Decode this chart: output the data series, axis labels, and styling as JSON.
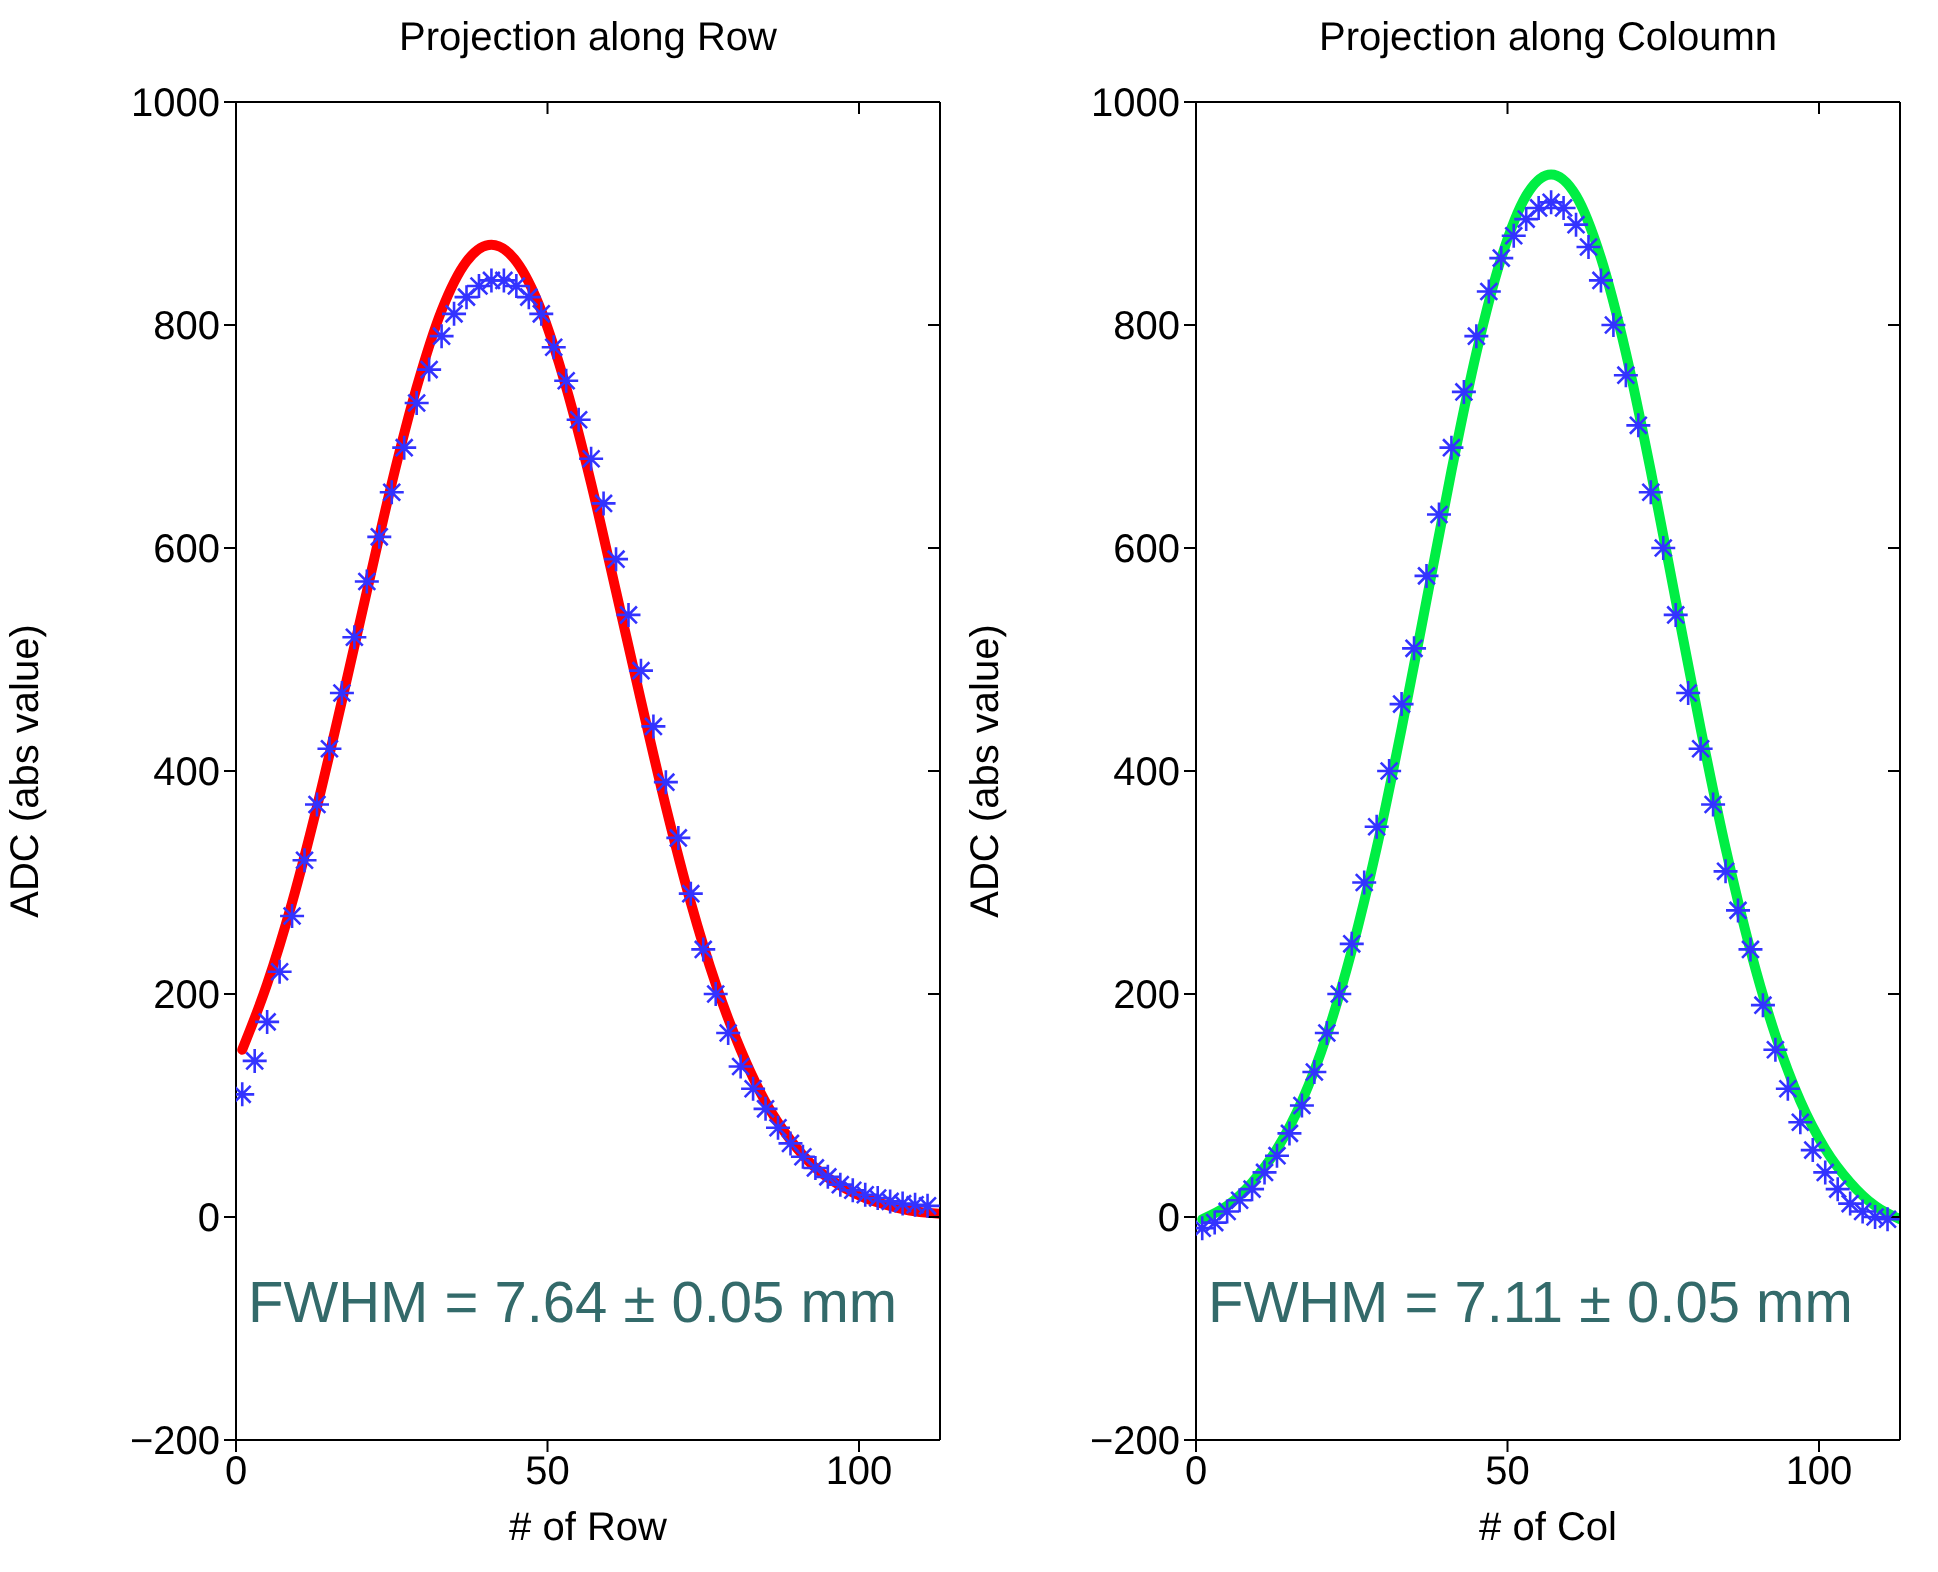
{
  "chart_data": [
    {
      "type": "scatter",
      "title": "Projection along Row",
      "xlabel": "# of Row",
      "ylabel": "ADC (abs value)",
      "xlim": [
        0,
        113
      ],
      "xticks": [
        0,
        50,
        100
      ],
      "ylim": [
        -200,
        1000
      ],
      "yticks": [
        -200,
        0,
        200,
        400,
        600,
        800,
        1000
      ],
      "legend": false,
      "annotations": [
        "FWHM = 7.64 ± 0.05 mm"
      ],
      "series": [
        {
          "marker": "cross",
          "color": "#3333ff",
          "x": [
            1,
            3,
            5,
            7,
            9,
            11,
            13,
            15,
            17,
            19,
            21,
            23,
            25,
            27,
            29,
            31,
            33,
            35,
            37,
            39,
            41,
            43,
            45,
            47,
            49,
            51,
            53,
            55,
            57,
            59,
            61,
            63,
            65,
            67,
            69,
            71,
            73,
            75,
            77,
            79,
            81,
            83,
            85,
            87,
            89,
            91,
            93,
            95,
            97,
            99,
            101,
            103,
            105,
            107,
            109,
            111
          ],
          "values": [
            110,
            140,
            175,
            220,
            270,
            320,
            370,
            420,
            470,
            520,
            570,
            610,
            650,
            690,
            730,
            760,
            790,
            810,
            825,
            835,
            840,
            840,
            835,
            825,
            810,
            780,
            750,
            715,
            680,
            640,
            590,
            540,
            490,
            440,
            390,
            340,
            290,
            240,
            200,
            165,
            135,
            115,
            97,
            80,
            66,
            54,
            44,
            36,
            29,
            24,
            20,
            17,
            14,
            12,
            11,
            10
          ]
        },
        {
          "type": "line",
          "marker": "none",
          "line_style": "solid",
          "color": "#ff0000",
          "x": [
            1,
            5,
            9,
            13,
            17,
            21,
            25,
            29,
            33,
            37,
            41,
            45,
            49,
            53,
            57,
            61,
            65,
            69,
            73,
            77,
            81,
            85,
            89,
            93,
            97,
            101,
            105,
            109,
            113
          ],
          "values": [
            150,
            209,
            282,
            368,
            463,
            561,
            658,
            744,
            813,
            857,
            872,
            857,
            813,
            744,
            658,
            561,
            463,
            368,
            282,
            209,
            150,
            103,
            69,
            44,
            28,
            17,
            10,
            5,
            3
          ]
        }
      ]
    },
    {
      "type": "scatter",
      "title": "Projection along Coloumn",
      "xlabel": "# of Col",
      "ylabel": "ADC (abs value)",
      "xlim": [
        0,
        113
      ],
      "xticks": [
        0,
        50,
        100
      ],
      "ylim": [
        -200,
        1000
      ],
      "yticks": [
        -200,
        0,
        200,
        400,
        600,
        800,
        1000
      ],
      "legend": false,
      "annotations": [
        "FWHM = 7.11 ± 0.05 mm"
      ],
      "series": [
        {
          "marker": "cross",
          "color": "#3333ff",
          "x": [
            1,
            3,
            5,
            7,
            9,
            11,
            13,
            15,
            17,
            19,
            21,
            23,
            25,
            27,
            29,
            31,
            33,
            35,
            37,
            39,
            41,
            43,
            45,
            47,
            49,
            51,
            53,
            55,
            57,
            59,
            61,
            63,
            65,
            67,
            69,
            71,
            73,
            75,
            77,
            79,
            81,
            83,
            85,
            87,
            89,
            91,
            93,
            95,
            97,
            99,
            101,
            103,
            105,
            107,
            109,
            111
          ],
          "values": [
            -10,
            -5,
            5,
            15,
            25,
            40,
            55,
            75,
            100,
            130,
            165,
            200,
            245,
            300,
            350,
            400,
            460,
            510,
            575,
            630,
            690,
            740,
            790,
            830,
            860,
            880,
            895,
            905,
            910,
            905,
            890,
            870,
            840,
            800,
            755,
            710,
            650,
            600,
            540,
            470,
            420,
            370,
            310,
            275,
            240,
            190,
            150,
            115,
            85,
            60,
            40,
            25,
            12,
            5,
            0,
            -2
          ]
        },
        {
          "type": "line",
          "marker": "none",
          "line_style": "solid",
          "color": "#00ee44",
          "x": [
            1,
            5,
            9,
            13,
            17,
            21,
            25,
            29,
            33,
            37,
            41,
            45,
            49,
            53,
            57,
            61,
            65,
            69,
            73,
            77,
            81,
            85,
            89,
            93,
            97,
            101,
            105,
            109,
            113
          ],
          "values": [
            -2,
            10,
            31,
            61,
            104,
            163,
            239,
            331,
            438,
            553,
            669,
            775,
            860,
            916,
            935,
            916,
            860,
            775,
            669,
            553,
            438,
            331,
            239,
            163,
            104,
            61,
            31,
            10,
            -2
          ]
        }
      ]
    }
  ]
}
